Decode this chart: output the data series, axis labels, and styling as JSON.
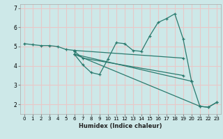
{
  "xlabel": "Humidex (Indice chaleur)",
  "xlim": [
    -0.5,
    23.5
  ],
  "ylim": [
    1.5,
    7.2
  ],
  "yticks": [
    2,
    3,
    4,
    5,
    6,
    7
  ],
  "xticks": [
    0,
    1,
    2,
    3,
    4,
    5,
    6,
    7,
    8,
    9,
    10,
    11,
    12,
    13,
    14,
    15,
    16,
    17,
    18,
    19,
    20,
    21,
    22,
    23
  ],
  "bg_color": "#cde8e8",
  "grid_color": "#e8c8c8",
  "line_color": "#2a7a6e",
  "segments": [
    {
      "x": [
        0,
        1,
        2,
        3,
        4,
        5,
        6
      ],
      "y": [
        5.15,
        5.1,
        5.05,
        5.05,
        5.0,
        4.85,
        4.8
      ]
    },
    {
      "x": [
        6,
        19
      ],
      "y": [
        4.8,
        4.4
      ]
    },
    {
      "x": [
        6,
        7,
        19
      ],
      "y": [
        4.75,
        4.4,
        3.5
      ]
    },
    {
      "x": [
        6,
        7,
        8,
        9,
        10,
        11,
        12,
        13,
        14,
        15,
        16,
        17,
        18,
        19,
        20
      ],
      "y": [
        4.6,
        4.05,
        3.65,
        3.55,
        4.35,
        5.2,
        5.15,
        4.8,
        4.75,
        5.55,
        6.25,
        6.45,
        6.7,
        5.4,
        3.2
      ]
    },
    {
      "x": [
        6,
        20,
        21,
        22,
        23
      ],
      "y": [
        4.6,
        3.2,
        1.9,
        1.85,
        2.1
      ]
    },
    {
      "x": [
        6,
        21,
        22,
        23
      ],
      "y": [
        4.6,
        1.9,
        1.85,
        2.1
      ]
    }
  ]
}
